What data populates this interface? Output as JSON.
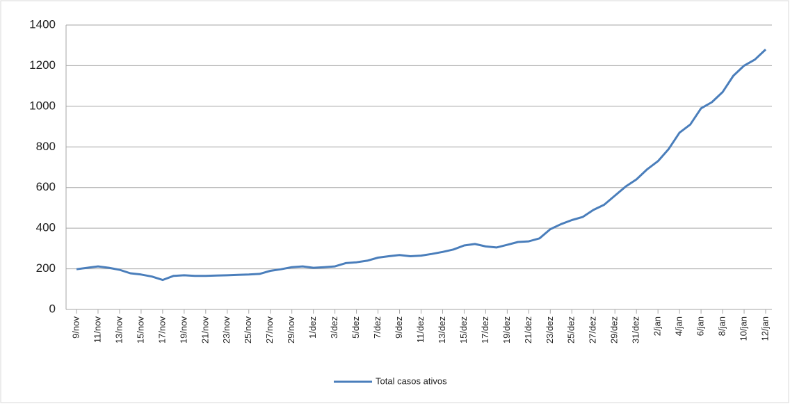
{
  "chart_data": {
    "type": "line",
    "categories": [
      "9/nov",
      null,
      "11/nov",
      null,
      "13/nov",
      null,
      "15/nov",
      null,
      "17/nov",
      null,
      "19/nov",
      null,
      "21/nov",
      null,
      "23/nov",
      null,
      "25/nov",
      null,
      "27/nov",
      null,
      "29/nov",
      null,
      "1/dez",
      null,
      "3/dez",
      null,
      "5/dez",
      null,
      "7/dez",
      null,
      "9/dez",
      null,
      "11/dez",
      null,
      "13/dez",
      null,
      "15/dez",
      null,
      "17/dez",
      null,
      "19/dez",
      null,
      "21/dez",
      null,
      "23/dez",
      null,
      "25/dez",
      null,
      "27/dez",
      null,
      "29/dez",
      null,
      "31/dez",
      null,
      "2/jan",
      null,
      "4/jan",
      null,
      "6/jan",
      null,
      "8/jan",
      null,
      "10/jan",
      null,
      "12/jan"
    ],
    "series": [
      {
        "name": "Total casos ativos",
        "color": "#4a7ebb",
        "values": [
          198,
          205,
          212,
          205,
          195,
          178,
          172,
          162,
          145,
          165,
          168,
          165,
          165,
          167,
          168,
          170,
          172,
          175,
          190,
          198,
          208,
          212,
          205,
          208,
          212,
          228,
          232,
          240,
          255,
          262,
          268,
          262,
          265,
          273,
          283,
          295,
          315,
          322,
          310,
          305,
          318,
          332,
          335,
          350,
          395,
          420,
          440,
          455,
          490,
          515,
          560,
          605,
          640,
          690,
          730,
          790,
          870,
          910,
          990,
          1020,
          1070,
          1150,
          1200,
          1230,
          1280
        ]
      }
    ],
    "ylim": [
      0,
      1400
    ],
    "yticks": [
      0,
      200,
      400,
      600,
      800,
      1000,
      1200,
      1400
    ],
    "grid": true,
    "legend": "bottom"
  }
}
